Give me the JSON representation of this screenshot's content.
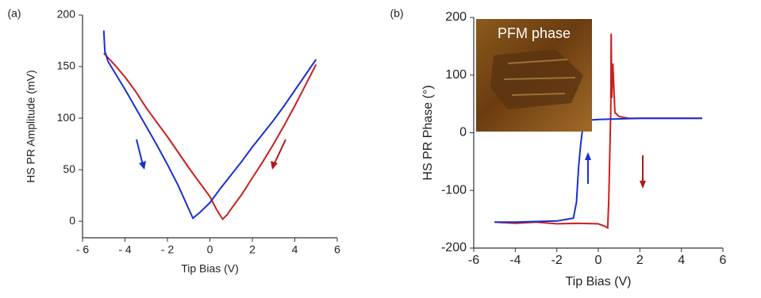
{
  "chart_data": [
    {
      "type": "line",
      "panel_label": "(a)",
      "xlabel": "Tip Bias (V)",
      "ylabel": "HS PR Amplitude (mV)",
      "xlim": [
        -6,
        6
      ],
      "xticks": [
        {
          "value": -6,
          "label": "- 6"
        },
        {
          "value": -4,
          "label": "- 4"
        },
        {
          "value": -2,
          "label": "- 2"
        },
        0,
        2,
        4,
        6
      ],
      "ylim": [
        -16,
        200
      ],
      "yticks": [
        0,
        50,
        100,
        150,
        200
      ],
      "series": [
        {
          "color": "#cc1f1f",
          "x": [
            -5,
            -4.5,
            -4,
            -3.5,
            -3,
            -2.5,
            -2,
            -1.5,
            -1,
            -0.5,
            0,
            0.3,
            0.6,
            0.8,
            1,
            1.5,
            2,
            2.5,
            3,
            3.5,
            4,
            4.5,
            5
          ],
          "values": [
            163,
            152,
            140,
            126,
            110,
            96,
            82,
            67,
            52,
            38,
            24,
            12,
            2,
            6,
            12,
            26,
            42,
            58,
            75,
            93,
            112,
            132,
            152
          ]
        },
        {
          "color": "#1a2fd0",
          "x": [
            -5,
            -4.95,
            -4.8,
            -4.5,
            -4,
            -3.5,
            -3,
            -2.5,
            -2,
            -1.5,
            -1,
            -0.8,
            -0.5,
            0,
            0.5,
            1,
            1.5,
            2,
            2.5,
            3,
            3.5,
            4,
            4.5,
            5
          ],
          "values": [
            185,
            165,
            155,
            145,
            128,
            110,
            92,
            74,
            55,
            35,
            12,
            3,
            8,
            18,
            32,
            45,
            58,
            72,
            85,
            98,
            112,
            127,
            142,
            157
          ]
        }
      ]
    },
    {
      "type": "line",
      "panel_label": "(b)",
      "xlabel": "Tip Bias (V)",
      "ylabel": "HS PR Phase (°)",
      "inset_label": "PFM phase",
      "xlim": [
        -6,
        6
      ],
      "xticks": [
        -6,
        -4,
        -2,
        0,
        2,
        4,
        6
      ],
      "ylim": [
        -200,
        200
      ],
      "yticks": [
        -200,
        -100,
        0,
        100,
        200
      ],
      "series": [
        {
          "color": "#cc1f1f",
          "x": [
            -5,
            -4,
            -3,
            -2,
            -1,
            0,
            0.3,
            0.45,
            0.5,
            0.55,
            0.6,
            0.62,
            0.65,
            0.7,
            0.8,
            1,
            1.5,
            2,
            3,
            4,
            5
          ],
          "values": [
            -155,
            -157,
            -155,
            -158,
            -157,
            -158,
            -162,
            -165,
            -120,
            -40,
            40,
            172,
            60,
            120,
            35,
            28,
            25,
            25,
            25,
            25,
            25
          ]
        },
        {
          "color": "#1a2fd0",
          "x": [
            -5,
            -4,
            -3,
            -2,
            -1.5,
            -1.2,
            -1.05,
            -0.95,
            -0.85,
            -0.75,
            -0.65,
            -0.55,
            -0.4,
            0,
            1,
            2,
            3,
            4,
            5
          ],
          "values": [
            -155,
            -155,
            -154,
            -153,
            -150,
            -148,
            -120,
            -60,
            -20,
            10,
            25,
            20,
            22,
            23,
            24,
            25,
            25,
            25,
            25
          ]
        }
      ]
    }
  ]
}
